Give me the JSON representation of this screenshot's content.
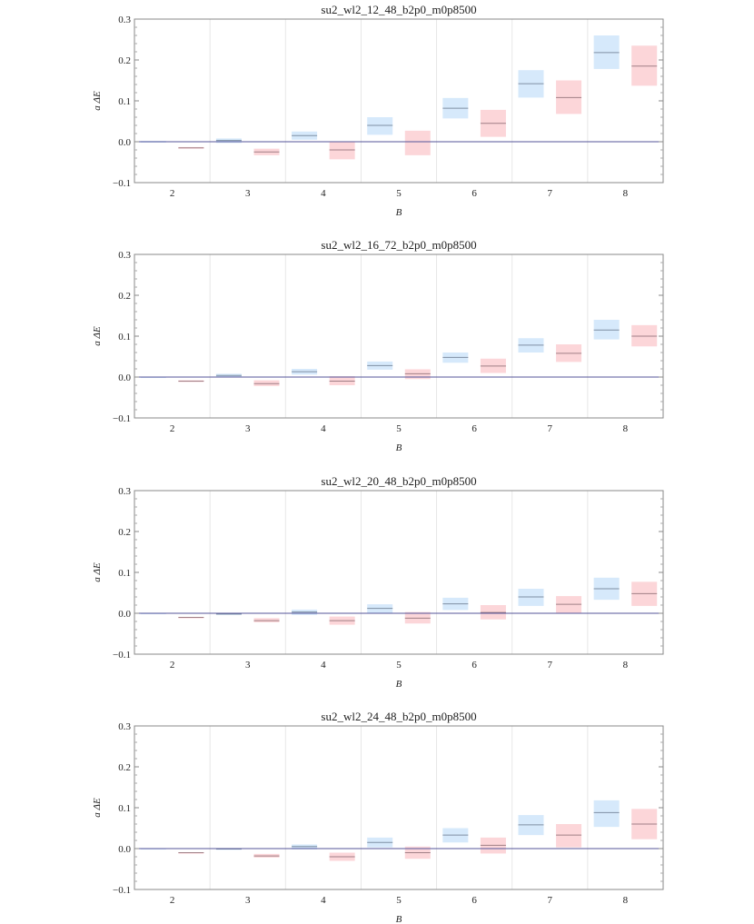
{
  "chart_data": [
    {
      "type": "bar",
      "title": "su2_wl2_12_48_b2p0_m0p8500",
      "xlabel": "B",
      "ylabel": "a ΔE",
      "ylim": [
        -0.1,
        0.3
      ],
      "categories": [
        "2",
        "3",
        "4",
        "5",
        "6",
        "7",
        "8"
      ],
      "yticks": [
        "−0.1",
        "0.0",
        "0.1",
        "0.2",
        "0.3"
      ],
      "colors": {
        "series_a": "#d6e9fb",
        "series_b": "#fcd6d9",
        "zero_line": "#55559a"
      },
      "series": [
        {
          "center": [
            0.0,
            0.003,
            0.015,
            0.04,
            0.082,
            0.142,
            0.218
          ],
          "low": [
            -0.002,
            -0.003,
            0.005,
            0.017,
            0.057,
            0.108,
            0.178
          ],
          "high": [
            0.002,
            0.008,
            0.025,
            0.06,
            0.107,
            0.175,
            0.26
          ]
        },
        {
          "center": [
            -0.015,
            -0.025,
            -0.02,
            0.0,
            0.045,
            0.108,
            0.185
          ],
          "low": [
            -0.017,
            -0.033,
            -0.043,
            -0.033,
            0.012,
            0.068,
            0.137
          ],
          "high": [
            -0.013,
            -0.017,
            0.0,
            0.027,
            0.078,
            0.15,
            0.235
          ]
        }
      ]
    },
    {
      "type": "bar",
      "title": "su2_wl2_16_72_b2p0_m0p8500",
      "xlabel": "B",
      "ylabel": "a ΔE",
      "ylim": [
        -0.1,
        0.3
      ],
      "categories": [
        "2",
        "3",
        "4",
        "5",
        "6",
        "7",
        "8"
      ],
      "yticks": [
        "−0.1",
        "0.0",
        "0.1",
        "0.2",
        "0.3"
      ],
      "colors": {
        "series_a": "#d6e9fb",
        "series_b": "#fcd6d9",
        "zero_line": "#55559a"
      },
      "series": [
        {
          "center": [
            0.0,
            0.004,
            0.013,
            0.028,
            0.048,
            0.078,
            0.115
          ],
          "low": [
            -0.001,
            0.0,
            0.006,
            0.018,
            0.035,
            0.06,
            0.092
          ],
          "high": [
            0.001,
            0.008,
            0.02,
            0.038,
            0.06,
            0.095,
            0.14
          ]
        },
        {
          "center": [
            -0.01,
            -0.016,
            -0.01,
            0.008,
            0.027,
            0.058,
            0.1
          ],
          "low": [
            -0.012,
            -0.022,
            -0.02,
            -0.005,
            0.01,
            0.037,
            0.075
          ],
          "high": [
            -0.008,
            -0.008,
            0.002,
            0.019,
            0.045,
            0.08,
            0.127
          ]
        }
      ]
    },
    {
      "type": "bar",
      "title": "su2_wl2_20_48_b2p0_m0p8500",
      "xlabel": "B",
      "ylabel": "a ΔE",
      "ylim": [
        -0.1,
        0.3
      ],
      "categories": [
        "2",
        "3",
        "4",
        "5",
        "6",
        "7",
        "8"
      ],
      "yticks": [
        "−0.1",
        "0.0",
        "0.1",
        "0.2",
        "0.3"
      ],
      "colors": {
        "series_a": "#d6e9fb",
        "series_b": "#fcd6d9",
        "zero_line": "#55559a"
      },
      "series": [
        {
          "center": [
            0.0,
            -0.002,
            0.003,
            0.012,
            0.023,
            0.04,
            0.06
          ],
          "low": [
            -0.001,
            -0.004,
            -0.004,
            0.001,
            0.008,
            0.018,
            0.033
          ],
          "high": [
            0.001,
            0.0,
            0.009,
            0.022,
            0.038,
            0.06,
            0.087
          ]
        },
        {
          "center": [
            -0.01,
            -0.018,
            -0.018,
            -0.012,
            0.002,
            0.022,
            0.048
          ],
          "low": [
            -0.011,
            -0.022,
            -0.028,
            -0.025,
            -0.015,
            0.0,
            0.018
          ],
          "high": [
            -0.009,
            -0.012,
            -0.008,
            0.003,
            0.02,
            0.042,
            0.077
          ]
        }
      ]
    },
    {
      "type": "bar",
      "title": "su2_wl2_24_48_b2p0_m0p8500",
      "xlabel": "B",
      "ylabel": "a ΔE",
      "ylim": [
        -0.1,
        0.3
      ],
      "categories": [
        "2",
        "3",
        "4",
        "5",
        "6",
        "7",
        "8"
      ],
      "yticks": [
        "−0.1",
        "0.0",
        "0.1",
        "0.2",
        "0.3"
      ],
      "colors": {
        "series_a": "#d6e9fb",
        "series_b": "#fcd6d9",
        "zero_line": "#55559a"
      },
      "series": [
        {
          "center": [
            0.0,
            -0.001,
            0.005,
            0.015,
            0.033,
            0.058,
            0.088
          ],
          "low": [
            -0.001,
            -0.003,
            -0.002,
            0.003,
            0.015,
            0.033,
            0.053
          ],
          "high": [
            0.001,
            0.001,
            0.01,
            0.027,
            0.05,
            0.082,
            0.118
          ]
        },
        {
          "center": [
            -0.01,
            -0.018,
            -0.02,
            -0.01,
            0.008,
            0.033,
            0.06
          ],
          "low": [
            -0.011,
            -0.022,
            -0.03,
            -0.025,
            -0.012,
            0.003,
            0.023
          ],
          "high": [
            -0.009,
            -0.013,
            -0.01,
            0.005,
            0.027,
            0.06,
            0.097
          ]
        }
      ]
    }
  ]
}
